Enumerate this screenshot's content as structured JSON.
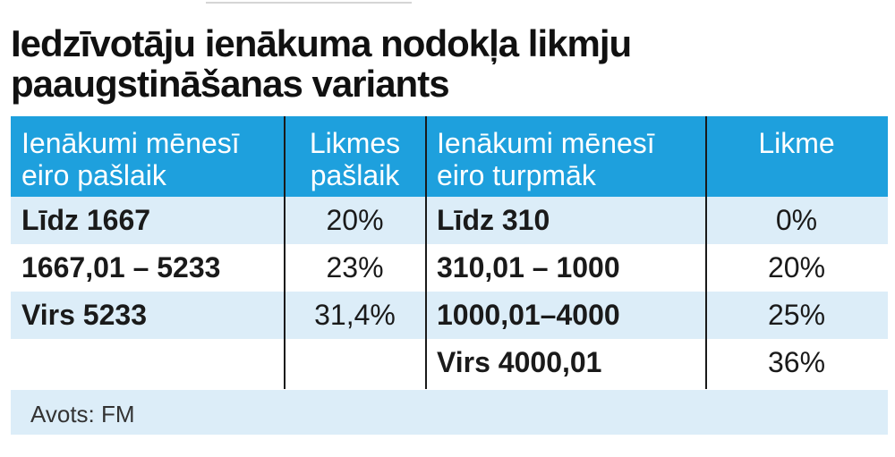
{
  "title": {
    "line1": "Iedzīvotāju ienākuma nodokļa likmju",
    "line2": "paaugstināšanas variants"
  },
  "table": {
    "headers": {
      "col1": [
        "Ienākumi mēnesī",
        "eiro pašlaik"
      ],
      "col2": [
        "Likmes",
        "pašlaik"
      ],
      "col3": [
        "Ienākumi mēnesī",
        "eiro turpmāk"
      ],
      "col4": [
        "Likme",
        ""
      ]
    },
    "rows": [
      {
        "current_income": "Līdz 1667",
        "current_rate": "20%",
        "future_income": "Līdz 310",
        "future_rate": "0%"
      },
      {
        "current_income": "1667,01 – 5233",
        "current_rate": "23%",
        "future_income": "310,01 – 1000",
        "future_rate": "20%"
      },
      {
        "current_income": "Virs 5233",
        "current_rate": "31,4%",
        "future_income": "1000,01–4000",
        "future_rate": "25%"
      },
      {
        "current_income": "",
        "current_rate": "",
        "future_income": "Virs 4000,01",
        "future_rate": "36%"
      }
    ]
  },
  "footer": {
    "source": "Avots: FM"
  },
  "colors": {
    "header_bg": "#1ea0dd",
    "row_alt_bg": "#dcedf8",
    "text": "#1a1a1a"
  }
}
